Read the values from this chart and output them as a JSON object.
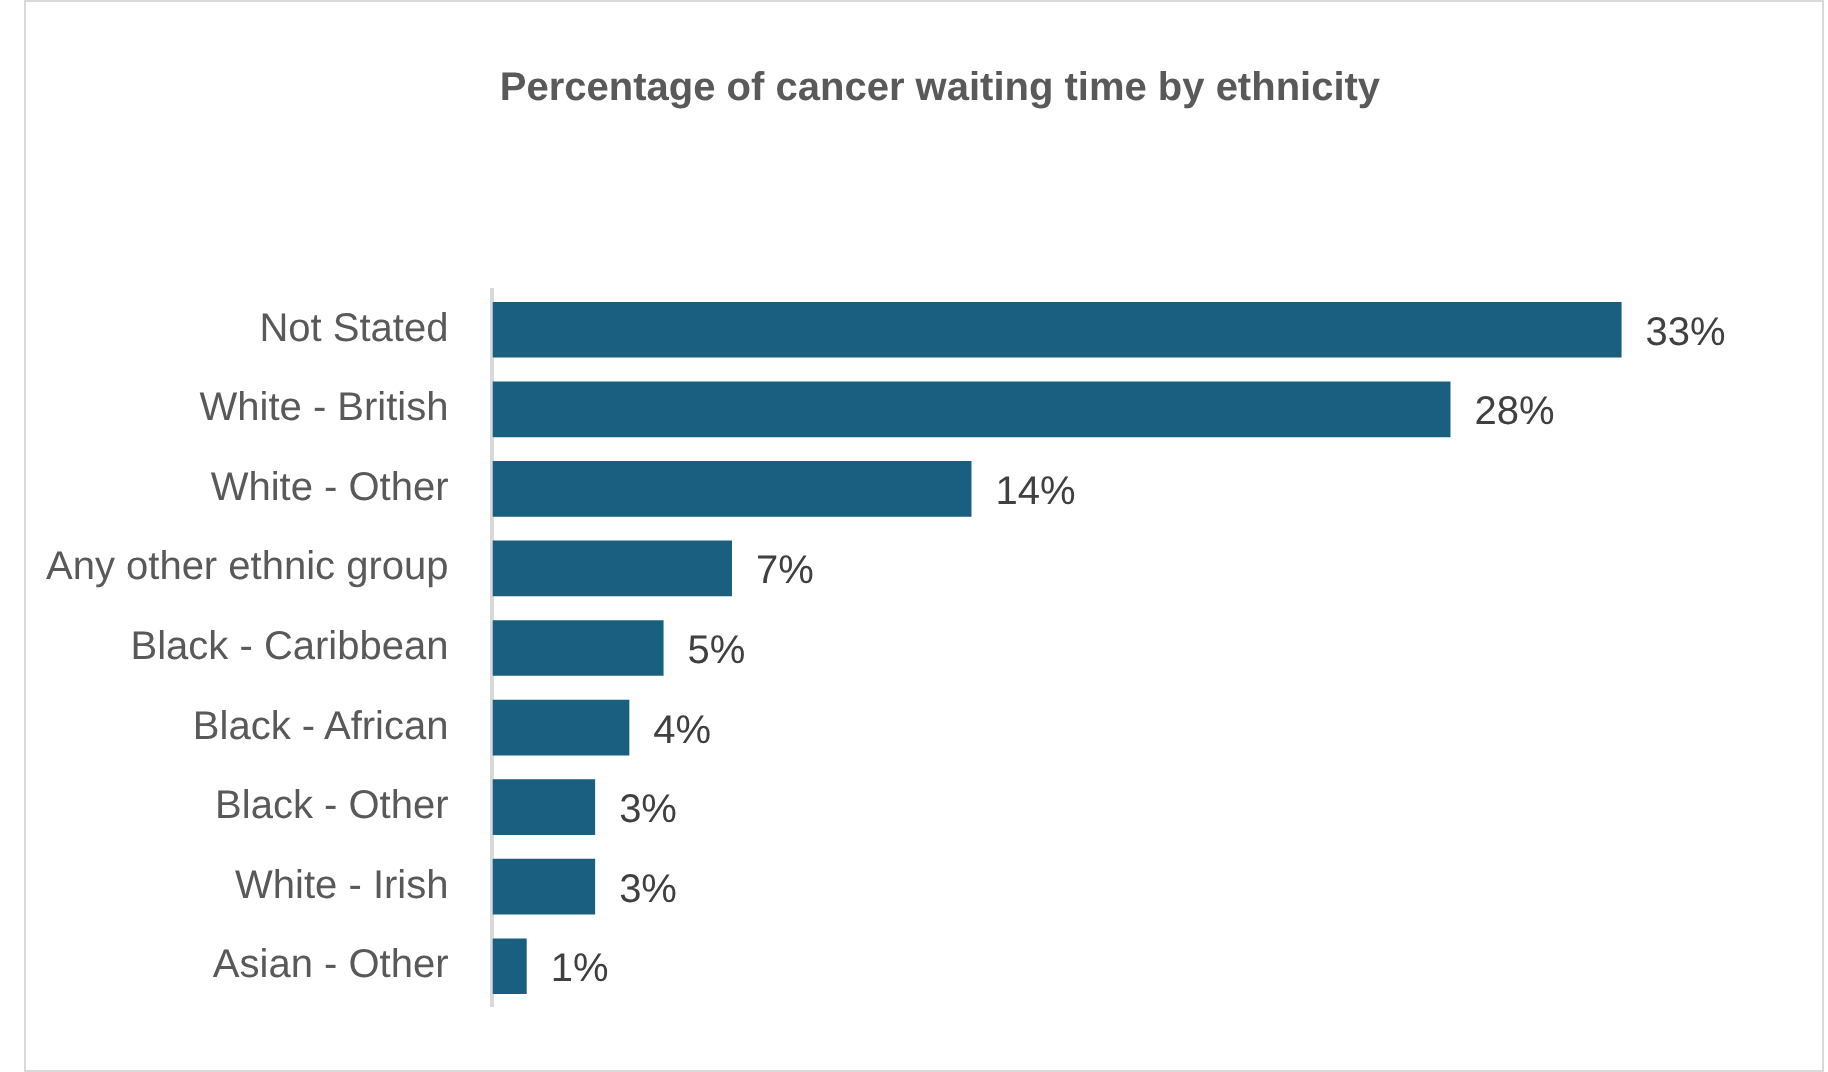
{
  "chart_data": {
    "type": "bar",
    "orientation": "horizontal",
    "title": "Percentage of cancer waiting time by ethnicity",
    "categories": [
      "Not Stated",
      "White - British",
      "White - Other",
      "Any other ethnic group",
      "Black - Caribbean",
      "Black - African",
      "Black - Other",
      "White - Irish",
      "Asian - Other"
    ],
    "values": [
      33,
      28,
      14,
      7,
      5,
      4,
      3,
      3,
      1
    ],
    "value_labels": [
      "33%",
      "28%",
      "14%",
      "7%",
      "5%",
      "4%",
      "3%",
      "3%",
      "1%"
    ],
    "color": "#1a5f80",
    "legend": false
  }
}
